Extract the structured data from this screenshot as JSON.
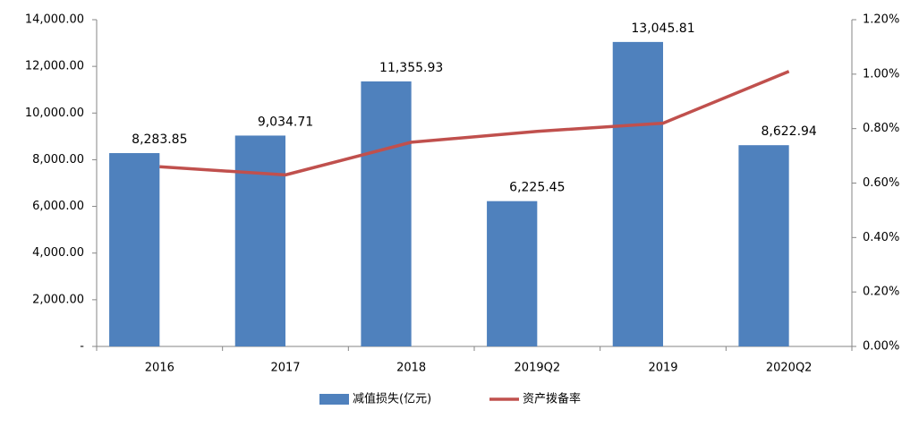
{
  "chart_data": {
    "type": "bar",
    "categories": [
      "2016",
      "2017",
      "2018",
      "2019Q2",
      "2019",
      "2020Q2"
    ],
    "series": [
      {
        "name": "减值损失(亿元)",
        "type": "bar",
        "color": "#4f81bd",
        "values": [
          8283.85,
          9034.71,
          11355.93,
          6225.45,
          13045.81,
          8622.94
        ],
        "value_labels": [
          "8,283.85",
          "9,034.71",
          "11,355.93",
          "6,225.45",
          "13,045.81",
          "8,622.94"
        ]
      },
      {
        "name": "资产拨备率",
        "type": "line",
        "axis": "y2",
        "color": "#c0504d",
        "values": [
          0.66,
          0.63,
          0.75,
          0.79,
          0.82,
          1.01
        ]
      }
    ],
    "ylim": [
      0,
      14000
    ],
    "yticks": [
      {
        "value": 0,
        "label": "-"
      },
      {
        "value": 2000,
        "label": "2,000.00"
      },
      {
        "value": 4000,
        "label": "4,000.00"
      },
      {
        "value": 6000,
        "label": "6,000.00"
      },
      {
        "value": 8000,
        "label": "8,000.00"
      },
      {
        "value": 10000,
        "label": "10,000.00"
      },
      {
        "value": 12000,
        "label": "12,000.00"
      },
      {
        "value": 14000,
        "label": "14,000.00"
      }
    ],
    "y2lim": [
      0,
      1.2
    ],
    "y2ticks": [
      {
        "value": 0,
        "label": "0.00%"
      },
      {
        "value": 0.2,
        "label": "0.20%"
      },
      {
        "value": 0.4,
        "label": "0.40%"
      },
      {
        "value": 0.6,
        "label": "0.60%"
      },
      {
        "value": 0.8,
        "label": "0.80%"
      },
      {
        "value": 1.0,
        "label": "1.00%"
      },
      {
        "value": 1.2,
        "label": "1.20%"
      }
    ],
    "grid": false
  }
}
